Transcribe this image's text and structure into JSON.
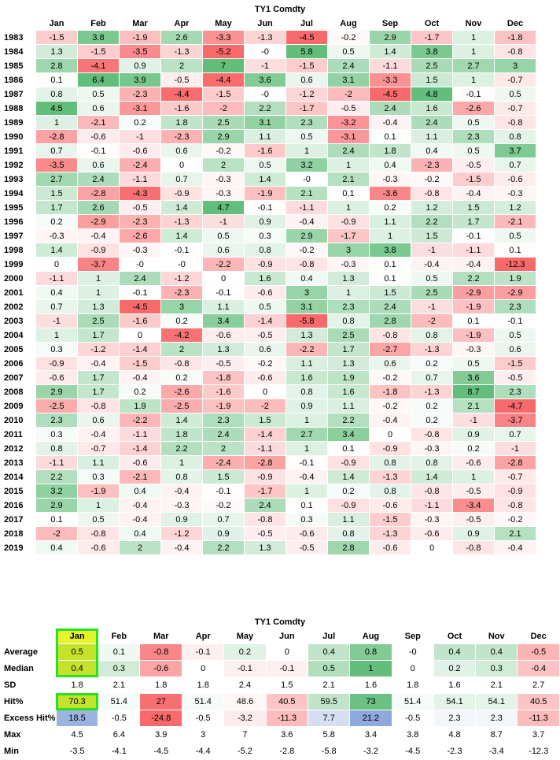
{
  "chart_data": [
    {
      "type": "heatmap",
      "title": "TY1 Comdty",
      "columns": [
        "Jan",
        "Feb",
        "Mar",
        "Apr",
        "May",
        "Jun",
        "Jul",
        "Aug",
        "Sep",
        "Oct",
        "Nov",
        "Dec"
      ],
      "rows": [
        {
          "year": "1983",
          "values": [
            "-1.5",
            "3.8",
            "-1.9",
            "2.6",
            "-3.3",
            "-1.3",
            "-4.5",
            "-0.2",
            "2.9",
            "-1.7",
            "1",
            "-1.8"
          ]
        },
        {
          "year": "1984",
          "values": [
            "1.3",
            "-1.5",
            "-3.5",
            "-1.3",
            "-5.2",
            "-0",
            "5.8",
            "0.5",
            "1.4",
            "3.8",
            "1",
            "-0.8"
          ]
        },
        {
          "year": "1985",
          "values": [
            "2.8",
            "-4.1",
            "0.9",
            "2",
            "7",
            "-1",
            "-1.5",
            "2.4",
            "-1.1",
            "2.5",
            "2.7",
            "3"
          ]
        },
        {
          "year": "1986",
          "values": [
            "0.1",
            "6.4",
            "3.9",
            "-0.5",
            "-4.4",
            "3.6",
            "0.6",
            "3.1",
            "-3.3",
            "1.5",
            "1",
            "-0.7"
          ]
        },
        {
          "year": "1987",
          "values": [
            "0.8",
            "0.5",
            "-2.3",
            "-4.4",
            "-1.5",
            "-0",
            "-1.2",
            "-2",
            "-4.5",
            "4.8",
            "-0.1",
            "0.5"
          ]
        },
        {
          "year": "1988",
          "values": [
            "4.5",
            "0.6",
            "-3.1",
            "-1.6",
            "-2",
            "2.2",
            "-1.7",
            "-0.5",
            "2.4",
            "1.6",
            "-2.6",
            "-0.7"
          ]
        },
        {
          "year": "1989",
          "values": [
            "1",
            "-2.1",
            "0.2",
            "1.8",
            "2.5",
            "3.1",
            "2.3",
            "-3.2",
            "-0.4",
            "2.4",
            "0.5",
            "-0.8"
          ]
        },
        {
          "year": "1990",
          "values": [
            "-2.8",
            "-0.6",
            "-1",
            "-2.3",
            "2.9",
            "1.1",
            "0.5",
            "-3.1",
            "0.1",
            "1.1",
            "2.3",
            "0.8"
          ]
        },
        {
          "year": "1991",
          "values": [
            "0.7",
            "-0.1",
            "-0.6",
            "0.6",
            "-0.2",
            "-1.6",
            "1",
            "2.4",
            "1.8",
            "0.4",
            "0.5",
            "3.7"
          ]
        },
        {
          "year": "1992",
          "values": [
            "-3.5",
            "0.6",
            "-2.4",
            "0",
            "2",
            "0.5",
            "3.2",
            "1",
            "0.4",
            "-2.3",
            "-0.5",
            "0.7"
          ]
        },
        {
          "year": "1993",
          "values": [
            "2.7",
            "2.4",
            "-1.1",
            "0.7",
            "-0.3",
            "1.4",
            "-0",
            "2.1",
            "-0.3",
            "-0.2",
            "-1.5",
            "-0.6"
          ]
        },
        {
          "year": "1994",
          "values": [
            "1.5",
            "-2.8",
            "-4.3",
            "-0.9",
            "-0.3",
            "-1.9",
            "2.1",
            "0.1",
            "-3.6",
            "-0.8",
            "-0.4",
            "-0.3"
          ]
        },
        {
          "year": "1995",
          "values": [
            "1.7",
            "2.6",
            "-0.5",
            "1.4",
            "4.7",
            "-0.1",
            "-1.1",
            "1",
            "0.2",
            "1.2",
            "1.5",
            "1.2"
          ]
        },
        {
          "year": "1996",
          "values": [
            "0.2",
            "-2.9",
            "-2.3",
            "-1.3",
            "-1",
            "0.9",
            "-0.4",
            "-0.9",
            "1.1",
            "2.2",
            "1.7",
            "-2.1"
          ]
        },
        {
          "year": "1997",
          "values": [
            "-0.3",
            "-0.4",
            "-2.6",
            "1.4",
            "0.5",
            "0.3",
            "2.9",
            "-1.7",
            "1",
            "1.5",
            "-0.1",
            "0.5"
          ]
        },
        {
          "year": "1998",
          "values": [
            "1.4",
            "-0.9",
            "-0.3",
            "-0.1",
            "0.6",
            "0.8",
            "-0.2",
            "3",
            "3.8",
            "-1",
            "-1.1",
            "0.1"
          ]
        },
        {
          "year": "1999",
          "values": [
            "0",
            "-3.7",
            "-0",
            "-0",
            "-2.2",
            "-0.9",
            "-0.8",
            "-0.3",
            "0.1",
            "-0.4",
            "-0.4",
            "-12.3"
          ]
        },
        {
          "year": "2000",
          "values": [
            "-1.1",
            "1",
            "2.4",
            "-1.2",
            "0",
            "1.6",
            "0.4",
            "1.3",
            "0.1",
            "0.5",
            "2.2",
            "1.9"
          ]
        },
        {
          "year": "2001",
          "values": [
            "0.4",
            "1",
            "-0.1",
            "-2.3",
            "-0.1",
            "-0.6",
            "3",
            "1",
            "1.5",
            "2.5",
            "-2.9",
            "-2.9"
          ]
        },
        {
          "year": "2002",
          "values": [
            "0.7",
            "1.3",
            "-4.5",
            "3",
            "1.1",
            "0.5",
            "3.1",
            "2.3",
            "2.4",
            "-1",
            "-1.9",
            "2.3"
          ]
        },
        {
          "year": "2003",
          "values": [
            "-1",
            "2.5",
            "-1.6",
            "0.2",
            "3.4",
            "-1.4",
            "-5.8",
            "0.8",
            "2.8",
            "-2",
            "0.1",
            "-0.1"
          ]
        },
        {
          "year": "2004",
          "values": [
            "1",
            "1.7",
            "0",
            "-4.2",
            "-0.6",
            "-0.5",
            "1.3",
            "2.5",
            "-0.8",
            "0.8",
            "-1.9",
            "0.5"
          ]
        },
        {
          "year": "2005",
          "values": [
            "0.3",
            "-1.2",
            "-1.4",
            "2",
            "1.3",
            "0.6",
            "-2.2",
            "1.7",
            "-2.7",
            "-1.3",
            "-0.3",
            "0.6"
          ]
        },
        {
          "year": "2006",
          "values": [
            "-0.9",
            "-0.4",
            "-1.5",
            "-0.8",
            "-0.5",
            "-0.2",
            "1.1",
            "1.3",
            "0.6",
            "0.2",
            "0.5",
            "-1.5"
          ]
        },
        {
          "year": "2007",
          "values": [
            "-0.6",
            "1.7",
            "-0.4",
            "0.2",
            "-1.8",
            "-0.6",
            "1.6",
            "1.9",
            "-0.2",
            "0.7",
            "3.6",
            "-0.5"
          ]
        },
        {
          "year": "2008",
          "values": [
            "2.9",
            "1.7",
            "0.2",
            "-2.6",
            "-1.6",
            "0",
            "0.8",
            "1.6",
            "-1.8",
            "-1.3",
            "8.7",
            "2.3"
          ]
        },
        {
          "year": "2009",
          "values": [
            "-2.5",
            "-0.8",
            "1.9",
            "-2.5",
            "-1.9",
            "-2",
            "0.9",
            "1.1",
            "-0.2",
            "0.2",
            "2.1",
            "-4.7"
          ]
        },
        {
          "year": "2010",
          "values": [
            "2.3",
            "0.6",
            "-2.2",
            "1.4",
            "2.3",
            "1.5",
            "1",
            "2.2",
            "-0.4",
            "0.2",
            "-1",
            "-3.7"
          ]
        },
        {
          "year": "2011",
          "values": [
            "0.3",
            "-0.4",
            "-1.1",
            "1.8",
            "2.4",
            "-1.4",
            "2.7",
            "3.4",
            "0",
            "-0.8",
            "0.9",
            "0.7"
          ]
        },
        {
          "year": "2012",
          "values": [
            "0.8",
            "-0.7",
            "-1.4",
            "2.2",
            "2",
            "-1.1",
            "1",
            "0.1",
            "-0.9",
            "-0.3",
            "0.2",
            "-1"
          ]
        },
        {
          "year": "2013",
          "values": [
            "-1.1",
            "1.1",
            "-0.6",
            "1",
            "-2.4",
            "-2.8",
            "-0.1",
            "-0.9",
            "0.8",
            "0.8",
            "-0.6",
            "-2.8"
          ]
        },
        {
          "year": "2014",
          "values": [
            "2.2",
            "0.3",
            "-2.1",
            "0.8",
            "1.5",
            "-0.9",
            "-0.4",
            "1.4",
            "-1.3",
            "1.4",
            "1",
            "-0.7"
          ]
        },
        {
          "year": "2015",
          "values": [
            "3.2",
            "-1.9",
            "0.4",
            "-0.4",
            "-0.1",
            "-1.7",
            "1",
            "0.2",
            "0.8",
            "-0.8",
            "-0.5",
            "-0.9"
          ]
        },
        {
          "year": "2016",
          "values": [
            "2.9",
            "1",
            "-0.4",
            "-0.3",
            "-0.2",
            "2.4",
            "0.1",
            "-0.9",
            "-0.6",
            "-1.1",
            "-3.4",
            "-0.8"
          ]
        },
        {
          "year": "2017",
          "values": [
            "0.1",
            "0.5",
            "-0.4",
            "0.9",
            "0.7",
            "-0.8",
            "0.3",
            "1.1",
            "-1.5",
            "-0.3",
            "-0.5",
            "-0.2"
          ]
        },
        {
          "year": "2018",
          "values": [
            "-2",
            "-0.8",
            "0.4",
            "-1.2",
            "0.9",
            "-0.5",
            "-0.6",
            "0.8",
            "-1.3",
            "-0.6",
            "0.9",
            "2.1"
          ]
        },
        {
          "year": "2019",
          "values": [
            "0.4",
            "-0.6",
            "2",
            "-0.4",
            "2.2",
            "1.3",
            "-0.5",
            "2.8",
            "-0.6",
            "0",
            "-0.8",
            "-0.4"
          ]
        }
      ]
    },
    {
      "type": "table",
      "title": "TY1 Comdty",
      "columns": [
        "Jan",
        "Feb",
        "Mar",
        "Apr",
        "May",
        "Jun",
        "Jul",
        "Aug",
        "Sep",
        "Oct",
        "Nov",
        "Dec"
      ],
      "rows": [
        {
          "label": "Average",
          "values": [
            "0.5",
            "0.1",
            "-0.8",
            "-0.1",
            "0.2",
            "0",
            "0.4",
            "0.8",
            "-0",
            "0.4",
            "0.4",
            "-0.5"
          ]
        },
        {
          "label": "Median",
          "values": [
            "0.4",
            "0.3",
            "-0.6",
            "0",
            "-0.1",
            "-0.1",
            "0.5",
            "1",
            "0",
            "0.2",
            "0.3",
            "-0.4"
          ]
        },
        {
          "label": "SD",
          "values": [
            "1.8",
            "2.1",
            "1.8",
            "1.8",
            "2.4",
            "1.5",
            "2.1",
            "1.6",
            "1.8",
            "1.6",
            "2.1",
            "2.7"
          ]
        },
        {
          "label": "Hit%",
          "values": [
            "70.3",
            "51.4",
            "27",
            "51.4",
            "48.6",
            "40.5",
            "59.5",
            "73",
            "51.4",
            "54.1",
            "54.1",
            "40.5"
          ]
        },
        {
          "label": "Excess Hit%",
          "values": [
            "18.5",
            "-0.5",
            "-24.8",
            "-0.5",
            "-3.2",
            "-11.3",
            "7.7",
            "21.2",
            "-0.5",
            "2.3",
            "2.3",
            "-11.3"
          ]
        },
        {
          "label": "Max",
          "values": [
            "4.5",
            "6.4",
            "3.9",
            "3",
            "7",
            "3.6",
            "5.8",
            "3.4",
            "3.8",
            "4.8",
            "8.7",
            "3.7"
          ]
        },
        {
          "label": "Min",
          "values": [
            "-3.5",
            "-4.1",
            "-4.5",
            "-4.4",
            "-5.2",
            "-2.8",
            "-5.8",
            "-3.2",
            "-4.5",
            "-2.3",
            "-3.4",
            "-12.3"
          ]
        }
      ],
      "highlighted_column": "Jan",
      "highlight_color": "#27e227"
    }
  ],
  "colors": {
    "positive": "#63be7b",
    "negative": "#f8696b",
    "neutral": "#ffffff",
    "highlight_fill": "#c6e22b",
    "highlight_fill_bright": "#e6f52b",
    "excess_pos": "#8ea9db",
    "excess_neg": "#f8696b"
  }
}
